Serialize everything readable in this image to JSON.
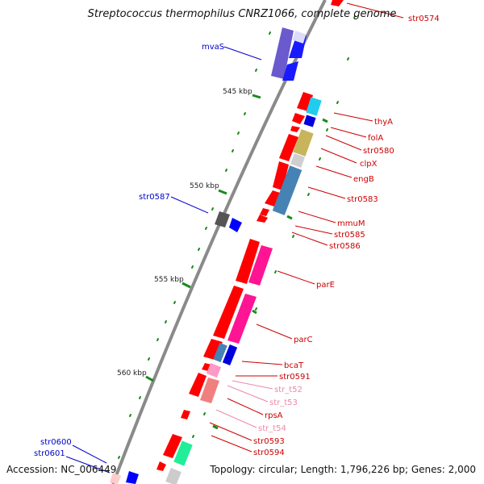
{
  "title": "Streptococcus thermophilus CNRZ1066, complete genome",
  "accession": "Accession: NC_006449",
  "topology": "Topology: circular; Length: 1,796,226 bp; Genes: 2,000",
  "colors": {
    "backbone": "#8a8a8a",
    "forward_gene": "#ff0000",
    "reverse_gene": "#0000ff",
    "rna_gene": "#ff99c8",
    "tick": "#1a8a1a"
  },
  "ticks": [
    "545 kbp",
    "550 kbp",
    "555 kbp",
    "560 kbp"
  ],
  "labels": [
    {
      "text": "str0574",
      "color": "#cc0000"
    },
    {
      "text": "mvaS",
      "color": "#0000cc"
    },
    {
      "text": "thyA",
      "color": "#cc0000"
    },
    {
      "text": "folA",
      "color": "#cc0000"
    },
    {
      "text": "str0580",
      "color": "#cc0000"
    },
    {
      "text": "clpX",
      "color": "#cc0000"
    },
    {
      "text": "engB",
      "color": "#cc0000"
    },
    {
      "text": "str0583",
      "color": "#cc0000"
    },
    {
      "text": "str0587",
      "color": "#0000cc"
    },
    {
      "text": "mmuM",
      "color": "#cc0000"
    },
    {
      "text": "str0585",
      "color": "#cc0000"
    },
    {
      "text": "str0586",
      "color": "#cc0000"
    },
    {
      "text": "parE",
      "color": "#cc0000"
    },
    {
      "text": "parC",
      "color": "#cc0000"
    },
    {
      "text": "bcaT",
      "color": "#cc0000"
    },
    {
      "text": "str0591",
      "color": "#cc0000"
    },
    {
      "text": "str_t52",
      "color": "#ee88aa"
    },
    {
      "text": "str_t53",
      "color": "#ee88aa"
    },
    {
      "text": "rpsA",
      "color": "#cc0000"
    },
    {
      "text": "str_t54",
      "color": "#ee88aa"
    },
    {
      "text": "str0593",
      "color": "#cc0000"
    },
    {
      "text": "str0594",
      "color": "#cc0000"
    },
    {
      "text": "str0600",
      "color": "#0000cc"
    },
    {
      "text": "str0601",
      "color": "#0000cc"
    }
  ]
}
